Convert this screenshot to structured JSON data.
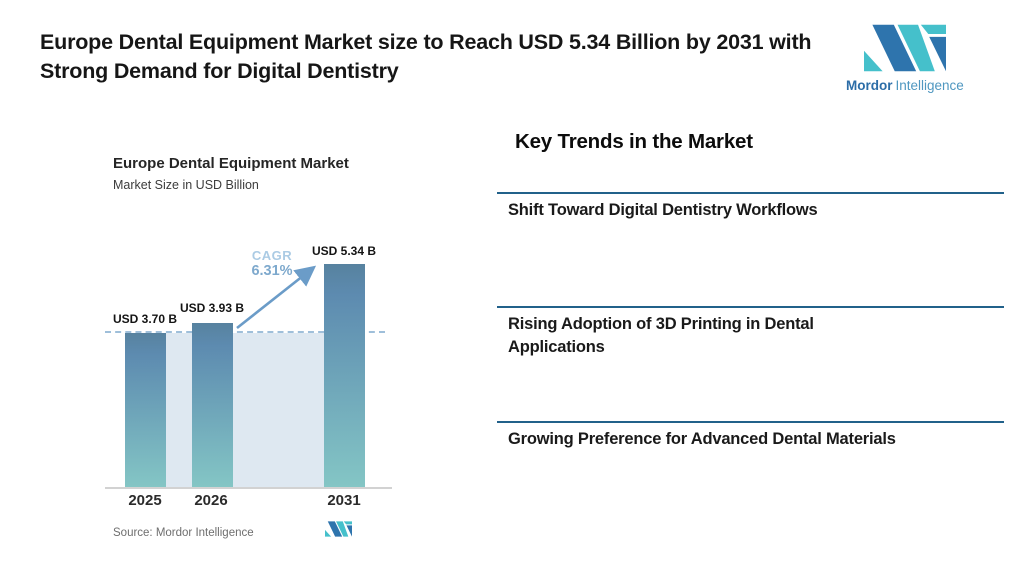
{
  "header": {
    "title": "Europe Dental Equipment Market size to Reach USD 5.34 Billion by 2031 with Strong Demand for Digital Dentistry"
  },
  "brand": {
    "name_primary": "Mordor",
    "name_secondary": "Intelligence"
  },
  "chart": {
    "title": "Europe Dental Equipment Market",
    "subtitle": "Market Size in USD Billion",
    "cagr_label": "CAGR",
    "cagr_value": "6.31%",
    "source": "Source: Mordor Intelligence"
  },
  "chart_data": {
    "type": "bar",
    "title": "Europe Dental Equipment Market",
    "subtitle": "Market Size in USD Billion",
    "categories": [
      "2025",
      "2026",
      "2031"
    ],
    "values": [
      3.7,
      3.93,
      5.34
    ],
    "data_labels": [
      "USD 3.70 B",
      "USD 3.93 B",
      "USD 5.34 B"
    ],
    "unit": "USD Billion",
    "cagr_percent": 6.31,
    "cagr_annotation": "CAGR 6.31%",
    "reference_line_value": 3.7,
    "ylim": [
      0,
      5.9
    ],
    "grid": false,
    "legend": false,
    "source": "Source: Mordor Intelligence"
  },
  "trends": {
    "heading": "Key Trends in the Market",
    "items": [
      "Shift Toward Digital Dentistry Workflows",
      "Rising Adoption of 3D Printing in Dental Applications",
      "Growing Preference for Advanced Dental Materials"
    ]
  },
  "colors": {
    "bar_top": "#5d8bb0",
    "bar_bottom": "#84c6c5",
    "band_fill": "#dee8f1",
    "dashed_line": "#9fbfda",
    "arrow": "#6b9cc8",
    "separator": "#21618a",
    "brand_blue": "#2c6da7",
    "brand_teal": "#45c0cb"
  }
}
